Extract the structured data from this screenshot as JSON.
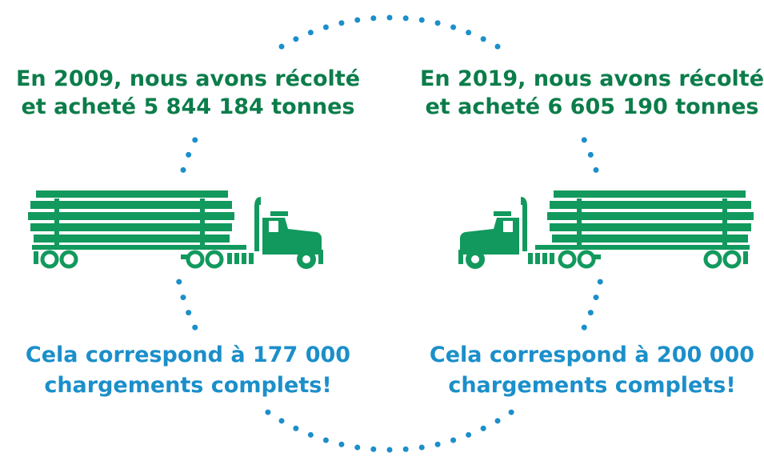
{
  "left": {
    "heading": [
      "En 2009, nous avons récolté",
      "et acheté 5 844 184 tonnes"
    ],
    "subtext": [
      "Cela correspond à 177 000",
      "chargements complets!"
    ]
  },
  "right": {
    "heading": [
      "En 2019, nous avons récolté",
      "et acheté 6 605 190 tonnes"
    ],
    "subtext": [
      "Cela correspond à 200 000",
      "chargements complets!"
    ]
  }
}
